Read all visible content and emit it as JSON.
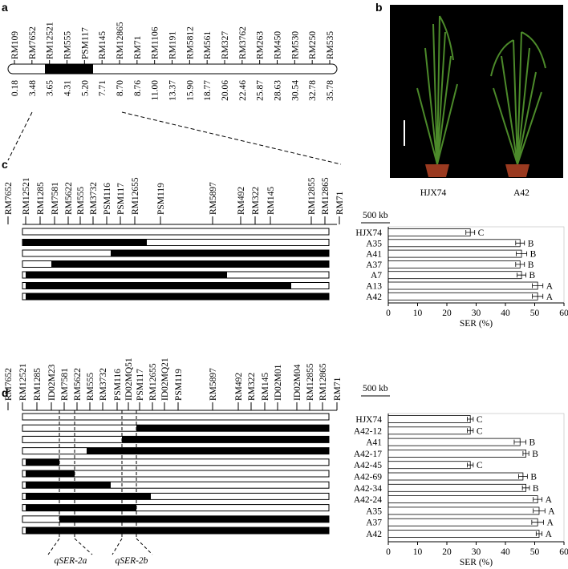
{
  "panel_a": {
    "letter": "a",
    "markers": [
      "RM109",
      "RM7652",
      "RM12521",
      "RM555",
      "PSM117",
      "RM145",
      "RM12865",
      "RM71",
      "RM1106",
      "RM191",
      "RM5812",
      "RM561",
      "RM327",
      "RM3762",
      "RM263",
      "RM450",
      "RM530",
      "RM250",
      "RM535"
    ],
    "positions": [
      "0.18",
      "3.48",
      "3.65",
      "4.31",
      "5.20",
      "7.71",
      "8.70",
      "8.76",
      "11.00",
      "13.37",
      "15.90",
      "18.77",
      "20.06",
      "22.46",
      "25.87",
      "28.63",
      "30.54",
      "32.78",
      "35.78"
    ]
  },
  "panel_b": {
    "letter": "b",
    "labels": [
      "HJX74",
      "A42"
    ]
  },
  "panel_c": {
    "letter": "c",
    "scale_label": "500 kb",
    "markers": [
      "RM7652",
      "RM12521",
      "RM1285",
      "RM7581",
      "RM5622",
      "RM555",
      "RM3732",
      "PSM116",
      "PSM117",
      "RM12655",
      "PSM119",
      "RM5897",
      "RM492",
      "RM322",
      "RM145",
      "RM12855",
      "RM12865",
      "RM71"
    ]
  },
  "panel_d": {
    "letter": "d",
    "scale_label": "500 kb",
    "markers": [
      "RM7652",
      "RM12521",
      "RM1285",
      "ID02M23",
      "RM7581",
      "RM5622",
      "RM555",
      "RM3732",
      "PSM116",
      "ID02MQ51",
      "PSM117",
      "RM12655",
      "ID02MQ21",
      "PSM119",
      "RM5897",
      "RM492",
      "RM322",
      "RM145",
      "ID02M01",
      "ID02M04",
      "RM12855",
      "RM12865",
      "RM71"
    ],
    "qtl_labels": [
      "qSER-2a",
      "qSER-2b"
    ]
  },
  "chart_data": [
    {
      "type": "bar",
      "orientation": "horizontal",
      "color": "#ffffff",
      "categories": [
        "HJX74",
        "A35",
        "A41",
        "A37",
        "A7",
        "A13",
        "A42"
      ],
      "values": [
        28,
        45,
        45.5,
        45,
        45.5,
        51,
        51
      ],
      "errors": [
        1.5,
        1.5,
        1.8,
        1.5,
        1.5,
        1.8,
        1.8
      ],
      "letters": [
        "C",
        "B",
        "B",
        "B",
        "B",
        "A",
        "A"
      ],
      "xlim": [
        0,
        60
      ],
      "xticks": [
        0,
        10,
        20,
        30,
        40,
        50,
        60
      ],
      "xlabel": "SER (%)"
    },
    {
      "type": "bar",
      "orientation": "horizontal",
      "color": "#ffffff",
      "categories": [
        "HJX74",
        "A42-12",
        "A41",
        "A42-17",
        "A42-45",
        "A42-69",
        "A42-34",
        "A42-24",
        "A35",
        "A37",
        "A42"
      ],
      "values": [
        28,
        28,
        45,
        47,
        28,
        46,
        47,
        51,
        51.5,
        51,
        51.5
      ],
      "errors": [
        1,
        1,
        2,
        1,
        1,
        1.5,
        1.2,
        1.5,
        2,
        2,
        1
      ],
      "letters": [
        "C",
        "C",
        "B",
        "B",
        "C",
        "B",
        "B",
        "A",
        "A",
        "A",
        "A"
      ],
      "xlim": [
        0,
        60
      ],
      "xticks": [
        0,
        10,
        20,
        30,
        40,
        50,
        60
      ],
      "xlabel": "SER (%)"
    }
  ]
}
